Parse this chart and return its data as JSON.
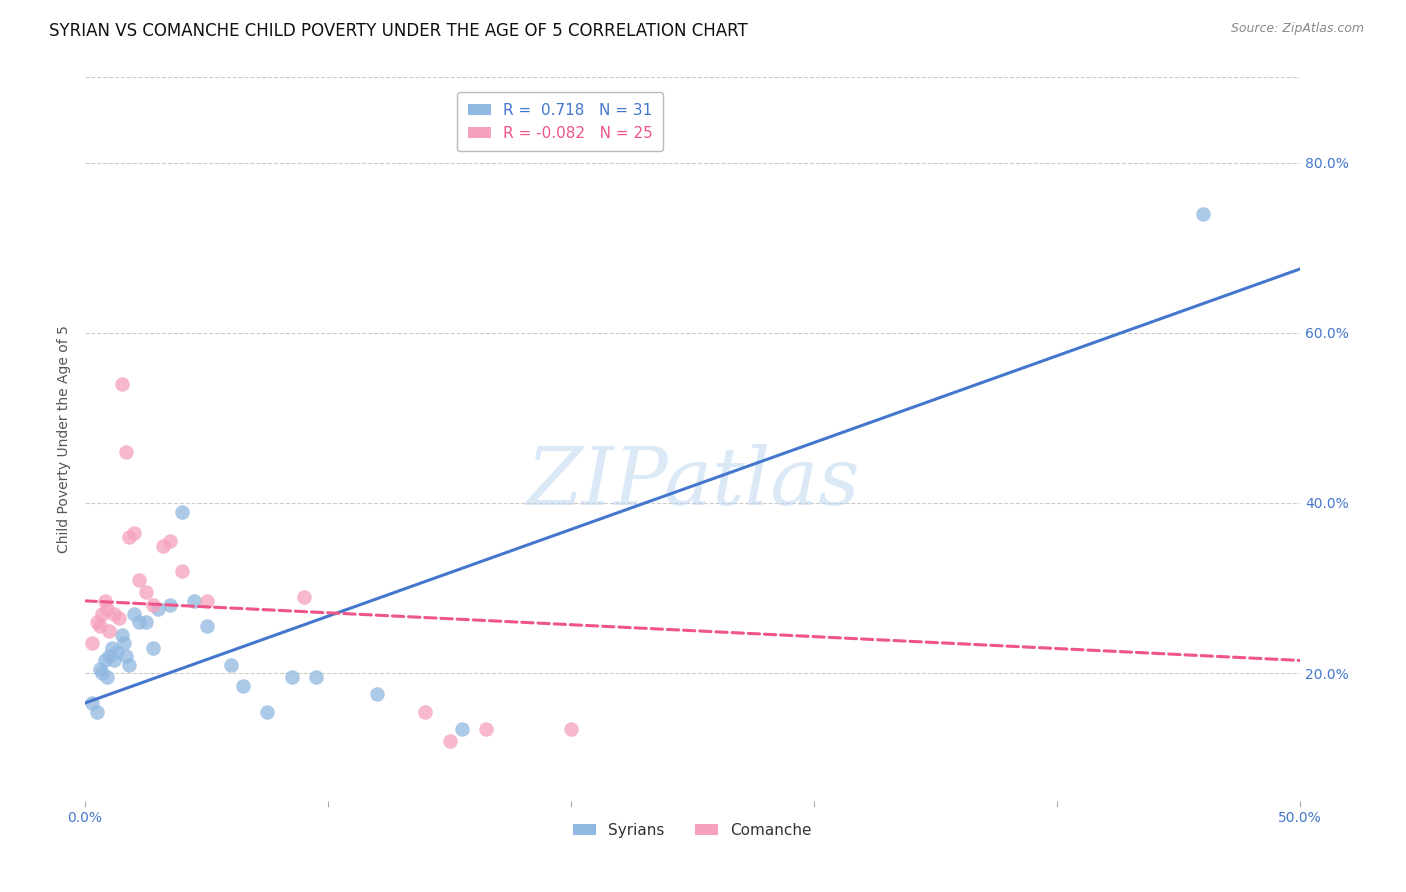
{
  "title": "SYRIAN VS COMANCHE CHILD POVERTY UNDER THE AGE OF 5 CORRELATION CHART",
  "source": "Source: ZipAtlas.com",
  "ylabel": "Child Poverty Under the Age of 5",
  "xlim": [
    0.0,
    0.5
  ],
  "ylim": [
    0.05,
    0.9
  ],
  "xticks": [
    0.0,
    0.1,
    0.2,
    0.3,
    0.4,
    0.5
  ],
  "xtick_labels": [
    "0.0%",
    "",
    "",
    "",
    "",
    "50.0%"
  ],
  "yticks_right": [
    0.2,
    0.4,
    0.6,
    0.8
  ],
  "ytick_labels_right": [
    "20.0%",
    "40.0%",
    "60.0%",
    "80.0%"
  ],
  "grid_color": "#cccccc",
  "background_color": "#ffffff",
  "syrian_color": "#90b8e0",
  "comanche_color": "#f5a0bc",
  "syrian_line_color": "#4477cc",
  "comanche_line_color": "#ee5588",
  "syrian_R": 0.718,
  "syrian_N": 31,
  "comanche_R": -0.082,
  "comanche_N": 25,
  "watermark": "ZIPatlas",
  "watermark_color": "#b8d4ee",
  "syrian_line_x": [
    0.0,
    0.5
  ],
  "syrian_line_y": [
    0.165,
    0.675
  ],
  "comanche_line_x": [
    0.0,
    0.5
  ],
  "comanche_line_y": [
    0.285,
    0.215
  ],
  "syrian_x": [
    0.003,
    0.005,
    0.006,
    0.007,
    0.008,
    0.009,
    0.01,
    0.011,
    0.012,
    0.013,
    0.015,
    0.016,
    0.017,
    0.018,
    0.02,
    0.022,
    0.025,
    0.028,
    0.03,
    0.035,
    0.04,
    0.045,
    0.05,
    0.06,
    0.065,
    0.075,
    0.085,
    0.095,
    0.12,
    0.155,
    0.46
  ],
  "syrian_y": [
    0.165,
    0.155,
    0.205,
    0.2,
    0.215,
    0.195,
    0.22,
    0.23,
    0.215,
    0.225,
    0.245,
    0.235,
    0.22,
    0.21,
    0.27,
    0.26,
    0.26,
    0.23,
    0.275,
    0.28,
    0.39,
    0.285,
    0.255,
    0.21,
    0.185,
    0.155,
    0.195,
    0.195,
    0.175,
    0.135,
    0.74
  ],
  "comanche_x": [
    0.003,
    0.005,
    0.006,
    0.007,
    0.008,
    0.009,
    0.01,
    0.012,
    0.014,
    0.015,
    0.017,
    0.018,
    0.02,
    0.022,
    0.025,
    0.028,
    0.032,
    0.035,
    0.04,
    0.05,
    0.09,
    0.14,
    0.15,
    0.165,
    0.2
  ],
  "comanche_y": [
    0.235,
    0.26,
    0.255,
    0.27,
    0.285,
    0.275,
    0.25,
    0.27,
    0.265,
    0.54,
    0.46,
    0.36,
    0.365,
    0.31,
    0.295,
    0.28,
    0.35,
    0.355,
    0.32,
    0.285,
    0.29,
    0.155,
    0.12,
    0.135,
    0.135
  ],
  "title_fontsize": 12,
  "source_fontsize": 9,
  "label_fontsize": 10,
  "tick_fontsize": 10,
  "legend_fontsize": 11
}
